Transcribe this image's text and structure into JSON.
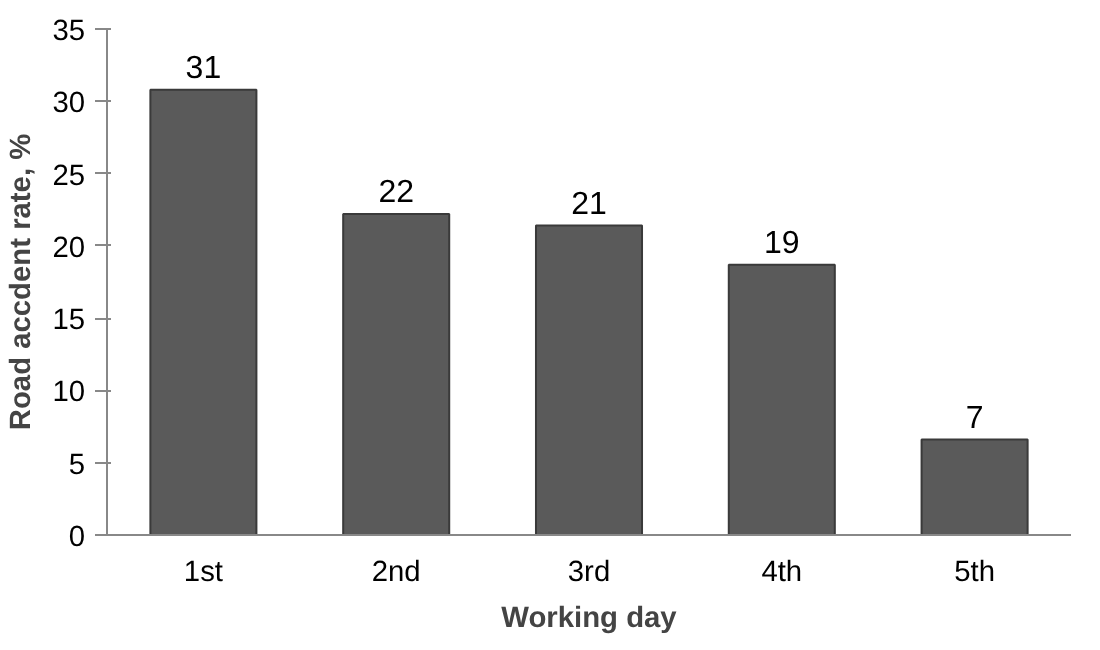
{
  "chart_data": {
    "type": "bar",
    "xlabel": "Working day",
    "ylabel": "Road accdent rate, %",
    "categories": [
      "1st",
      "2nd",
      "3rd",
      "4th",
      "5th"
    ],
    "values": [
      30.8,
      22.2,
      21.4,
      18.7,
      6.6
    ],
    "value_labels": [
      "31",
      "22",
      "21",
      "19",
      "7"
    ],
    "color": "#5a5a5a",
    "ylim": [
      0,
      35
    ],
    "yticks": [
      0,
      5,
      10,
      15,
      20,
      25,
      30,
      35
    ],
    "grid": false
  }
}
